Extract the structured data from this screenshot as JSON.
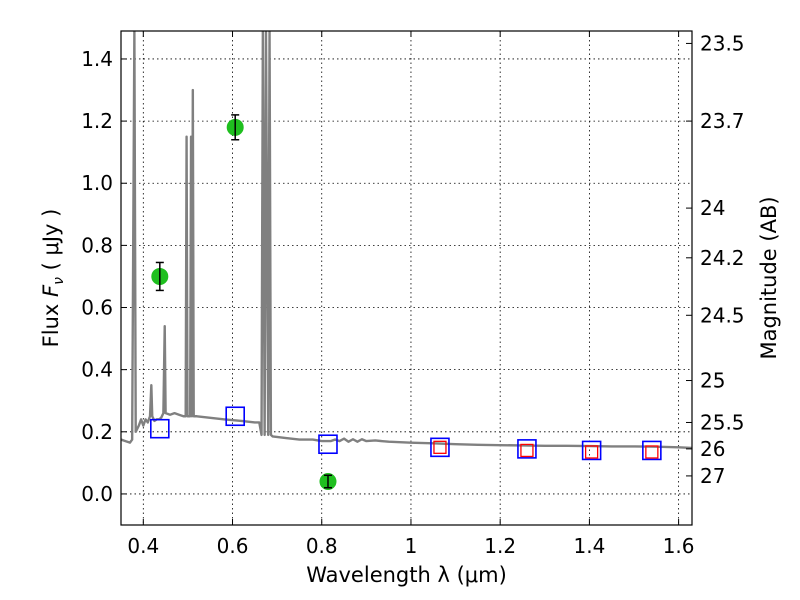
{
  "chart_data": {
    "type": "scatter",
    "xlabel": "Wavelength  λ (μm)",
    "ylabel": "Flux  F_ν  ( μJy )",
    "ylabel_right": "Magnitude (AB)",
    "xlim": [
      0.35,
      1.63
    ],
    "ylim": [
      -0.1,
      1.49
    ],
    "x_ticks": [
      0.4,
      0.6,
      0.8,
      1.0,
      1.2,
      1.4,
      1.6
    ],
    "x_tick_labels": [
      "0.4",
      "0.6",
      "0.8",
      "1",
      "1.2",
      "1.4",
      "1.6"
    ],
    "y_ticks": [
      0.0,
      0.2,
      0.4,
      0.6,
      0.8,
      1.0,
      1.2,
      1.4
    ],
    "y_tick_labels": [
      "0.0",
      "0.2",
      "0.4",
      "0.6",
      "0.8",
      "1.0",
      "1.2",
      "1.4"
    ],
    "right_ticks": [
      {
        "label": "23.5",
        "flux": 1.45
      },
      {
        "label": "23.7",
        "flux": 1.2
      },
      {
        "label": "24",
        "flux": 0.92
      },
      {
        "label": "24.2",
        "flux": 0.76
      },
      {
        "label": "24.5",
        "flux": 0.575
      },
      {
        "label": "25",
        "flux": 0.365
      },
      {
        "label": "25.5",
        "flux": 0.23
      },
      {
        "label": "26",
        "flux": 0.145
      },
      {
        "label": "27",
        "flux": 0.058
      }
    ],
    "grid": true,
    "colors": {
      "model": "#808080",
      "observed": "#1fbf1f",
      "model_photometry": "#0000ff",
      "measured_nir": "#ff0000"
    },
    "observed": {
      "marker": "circle",
      "points": [
        {
          "x": 0.437,
          "y": 0.7,
          "err": 0.045
        },
        {
          "x": 0.606,
          "y": 1.18,
          "err": 0.04
        },
        {
          "x": 0.814,
          "y": 0.04,
          "err": 0.02
        }
      ]
    },
    "model_photometry": {
      "marker": "square",
      "points": [
        {
          "x": 0.437,
          "y": 0.21
        },
        {
          "x": 0.606,
          "y": 0.25
        },
        {
          "x": 0.814,
          "y": 0.16
        },
        {
          "x": 1.065,
          "y": 0.15
        },
        {
          "x": 1.26,
          "y": 0.145
        },
        {
          "x": 1.405,
          "y": 0.14
        },
        {
          "x": 1.54,
          "y": 0.14
        }
      ]
    },
    "measured_nir": {
      "marker": "square",
      "points": [
        {
          "x": 1.065,
          "y": 0.15
        },
        {
          "x": 1.26,
          "y": 0.14
        },
        {
          "x": 1.405,
          "y": 0.135
        },
        {
          "x": 1.54,
          "y": 0.135
        }
      ]
    },
    "model_spectrum": [
      [
        0.35,
        0.175
      ],
      [
        0.36,
        0.17
      ],
      [
        0.37,
        0.165
      ],
      [
        0.375,
        0.175
      ],
      [
        0.38,
        1.49
      ],
      [
        0.383,
        0.2
      ],
      [
        0.39,
        0.22
      ],
      [
        0.395,
        0.24
      ],
      [
        0.4,
        0.22
      ],
      [
        0.405,
        0.24
      ],
      [
        0.41,
        0.23
      ],
      [
        0.415,
        0.25
      ],
      [
        0.418,
        0.35
      ],
      [
        0.42,
        0.25
      ],
      [
        0.425,
        0.235
      ],
      [
        0.43,
        0.24
      ],
      [
        0.435,
        0.24
      ],
      [
        0.44,
        0.245
      ],
      [
        0.445,
        0.26
      ],
      [
        0.448,
        0.54
      ],
      [
        0.45,
        0.26
      ],
      [
        0.46,
        0.255
      ],
      [
        0.47,
        0.26
      ],
      [
        0.48,
        0.255
      ],
      [
        0.49,
        0.25
      ],
      [
        0.495,
        0.25
      ],
      [
        0.497,
        1.15
      ],
      [
        0.499,
        0.25
      ],
      [
        0.505,
        0.25
      ],
      [
        0.507,
        1.15
      ],
      [
        0.509,
        0.25
      ],
      [
        0.511,
        1.3
      ],
      [
        0.513,
        0.25
      ],
      [
        0.52,
        0.25
      ],
      [
        0.55,
        0.245
      ],
      [
        0.58,
        0.24
      ],
      [
        0.62,
        0.235
      ],
      [
        0.65,
        0.23
      ],
      [
        0.66,
        0.23
      ],
      [
        0.665,
        0.19
      ],
      [
        0.668,
        1.49
      ],
      [
        0.672,
        0.19
      ],
      [
        0.675,
        1.49
      ],
      [
        0.68,
        0.19
      ],
      [
        0.683,
        1.49
      ],
      [
        0.686,
        0.19
      ],
      [
        0.69,
        0.185
      ],
      [
        0.72,
        0.18
      ],
      [
        0.75,
        0.175
      ],
      [
        0.78,
        0.175
      ],
      [
        0.8,
        0.17
      ],
      [
        0.82,
        0.17
      ],
      [
        0.83,
        0.175
      ],
      [
        0.84,
        0.17
      ],
      [
        0.85,
        0.178
      ],
      [
        0.86,
        0.168
      ],
      [
        0.87,
        0.176
      ],
      [
        0.88,
        0.168
      ],
      [
        0.89,
        0.176
      ],
      [
        0.9,
        0.17
      ],
      [
        0.92,
        0.172
      ],
      [
        0.95,
        0.168
      ],
      [
        1.0,
        0.165
      ],
      [
        1.05,
        0.163
      ],
      [
        1.1,
        0.16
      ],
      [
        1.15,
        0.158
      ],
      [
        1.2,
        0.157
      ],
      [
        1.25,
        0.156
      ],
      [
        1.3,
        0.155
      ],
      [
        1.35,
        0.155
      ],
      [
        1.4,
        0.154
      ],
      [
        1.45,
        0.153
      ],
      [
        1.5,
        0.153
      ],
      [
        1.55,
        0.152
      ],
      [
        1.6,
        0.15
      ],
      [
        1.63,
        0.148
      ]
    ]
  }
}
